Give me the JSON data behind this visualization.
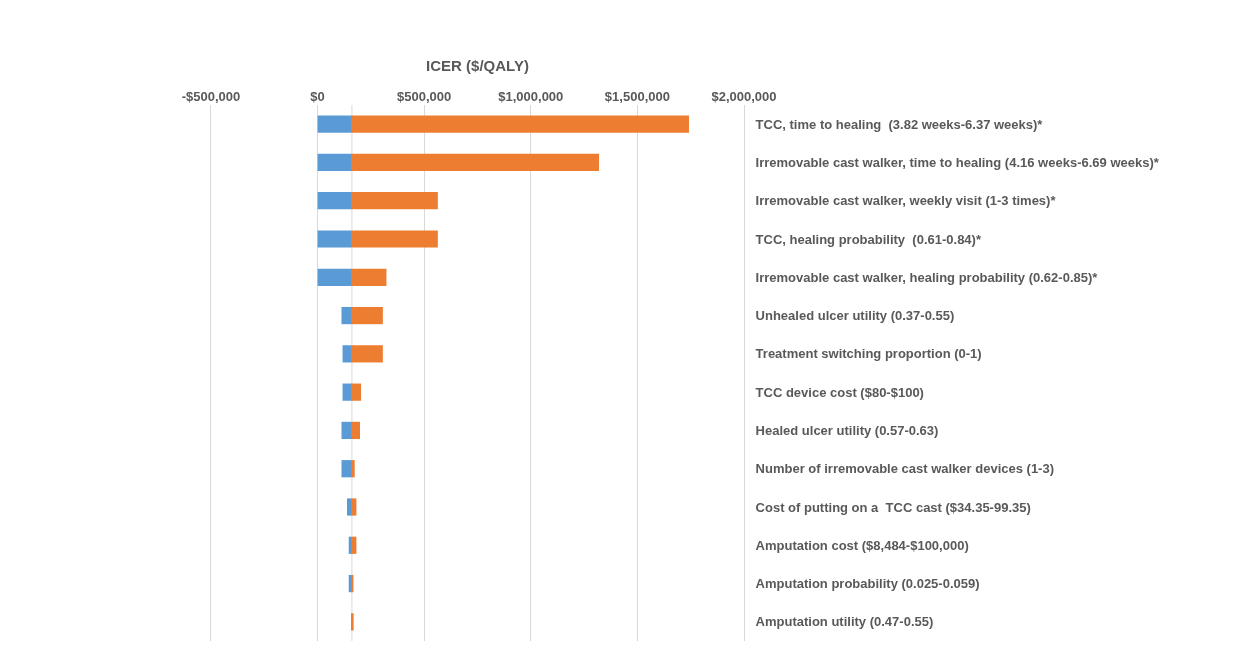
{
  "chart_data": {
    "type": "bar",
    "orientation": "horizontal",
    "xlabel": "ICER ($/QALY)",
    "categories": [
      "TCC, time to healing  (3.82 weeks-6.37 weeks)*",
      "Irremovable cast walker, time to healing (4.16 weeks-6.69 weeks)*",
      "Irremovable cast walker, weekly visit (1-3 times)*",
      "TCC, healing probability  (0.61-0.84)*",
      "Irremovable cast walker, healing probability (0.62-0.85)*",
      "Unhealed ulcer utility (0.37-0.55)",
      "Treatment switching proportion (0-1)",
      "TCC device cost ($80-$100)",
      "Healed ulcer utility (0.57-0.63)",
      "Number of irremovable cast walker devices (1-3)",
      "Cost of putting on a  TCC cast ($34.35-99.35)",
      "Amputation cost ($8,484-$100,000)",
      "Amputation probability (0.025-0.059)",
      "Amputation utility (0.47-0.55)"
    ],
    "series": [
      {
        "color": "#5b9bd5",
        "base": [
          0,
          0,
          0,
          0,
          0,
          112000,
          117000,
          117000,
          112000,
          112000,
          138000,
          146000,
          146000,
          null
        ],
        "values": [
          161000,
          161000,
          161000,
          161000,
          161000,
          49000,
          44000,
          44000,
          49000,
          49000,
          23000,
          15000,
          15000,
          null
        ]
      },
      {
        "color": "#ed7d31",
        "base": [
          161000,
          161000,
          161000,
          161000,
          161000,
          161000,
          161000,
          161000,
          161000,
          161000,
          161000,
          161000,
          161000,
          161000
        ],
        "values": [
          1581000,
          1159000,
          403000,
          403000,
          162000,
          145000,
          145000,
          43000,
          38000,
          13000,
          21000,
          21000,
          7000,
          8000
        ]
      }
    ],
    "xlim": [
      -500000,
      2000000
    ],
    "xticks": [
      {
        "value": -500000,
        "label": "-$500,000"
      },
      {
        "value": 0,
        "label": "$0"
      },
      {
        "value": 500000,
        "label": "$500,000"
      },
      {
        "value": 1000000,
        "label": "$1,000,000"
      },
      {
        "value": 1500000,
        "label": "$1,500,000"
      },
      {
        "value": 2000000,
        "label": "$2,000,000"
      }
    ],
    "ref_lines": [
      {
        "axis": "x",
        "value": 161000,
        "color": "#d9d9d9"
      }
    ],
    "grid": "x"
  }
}
